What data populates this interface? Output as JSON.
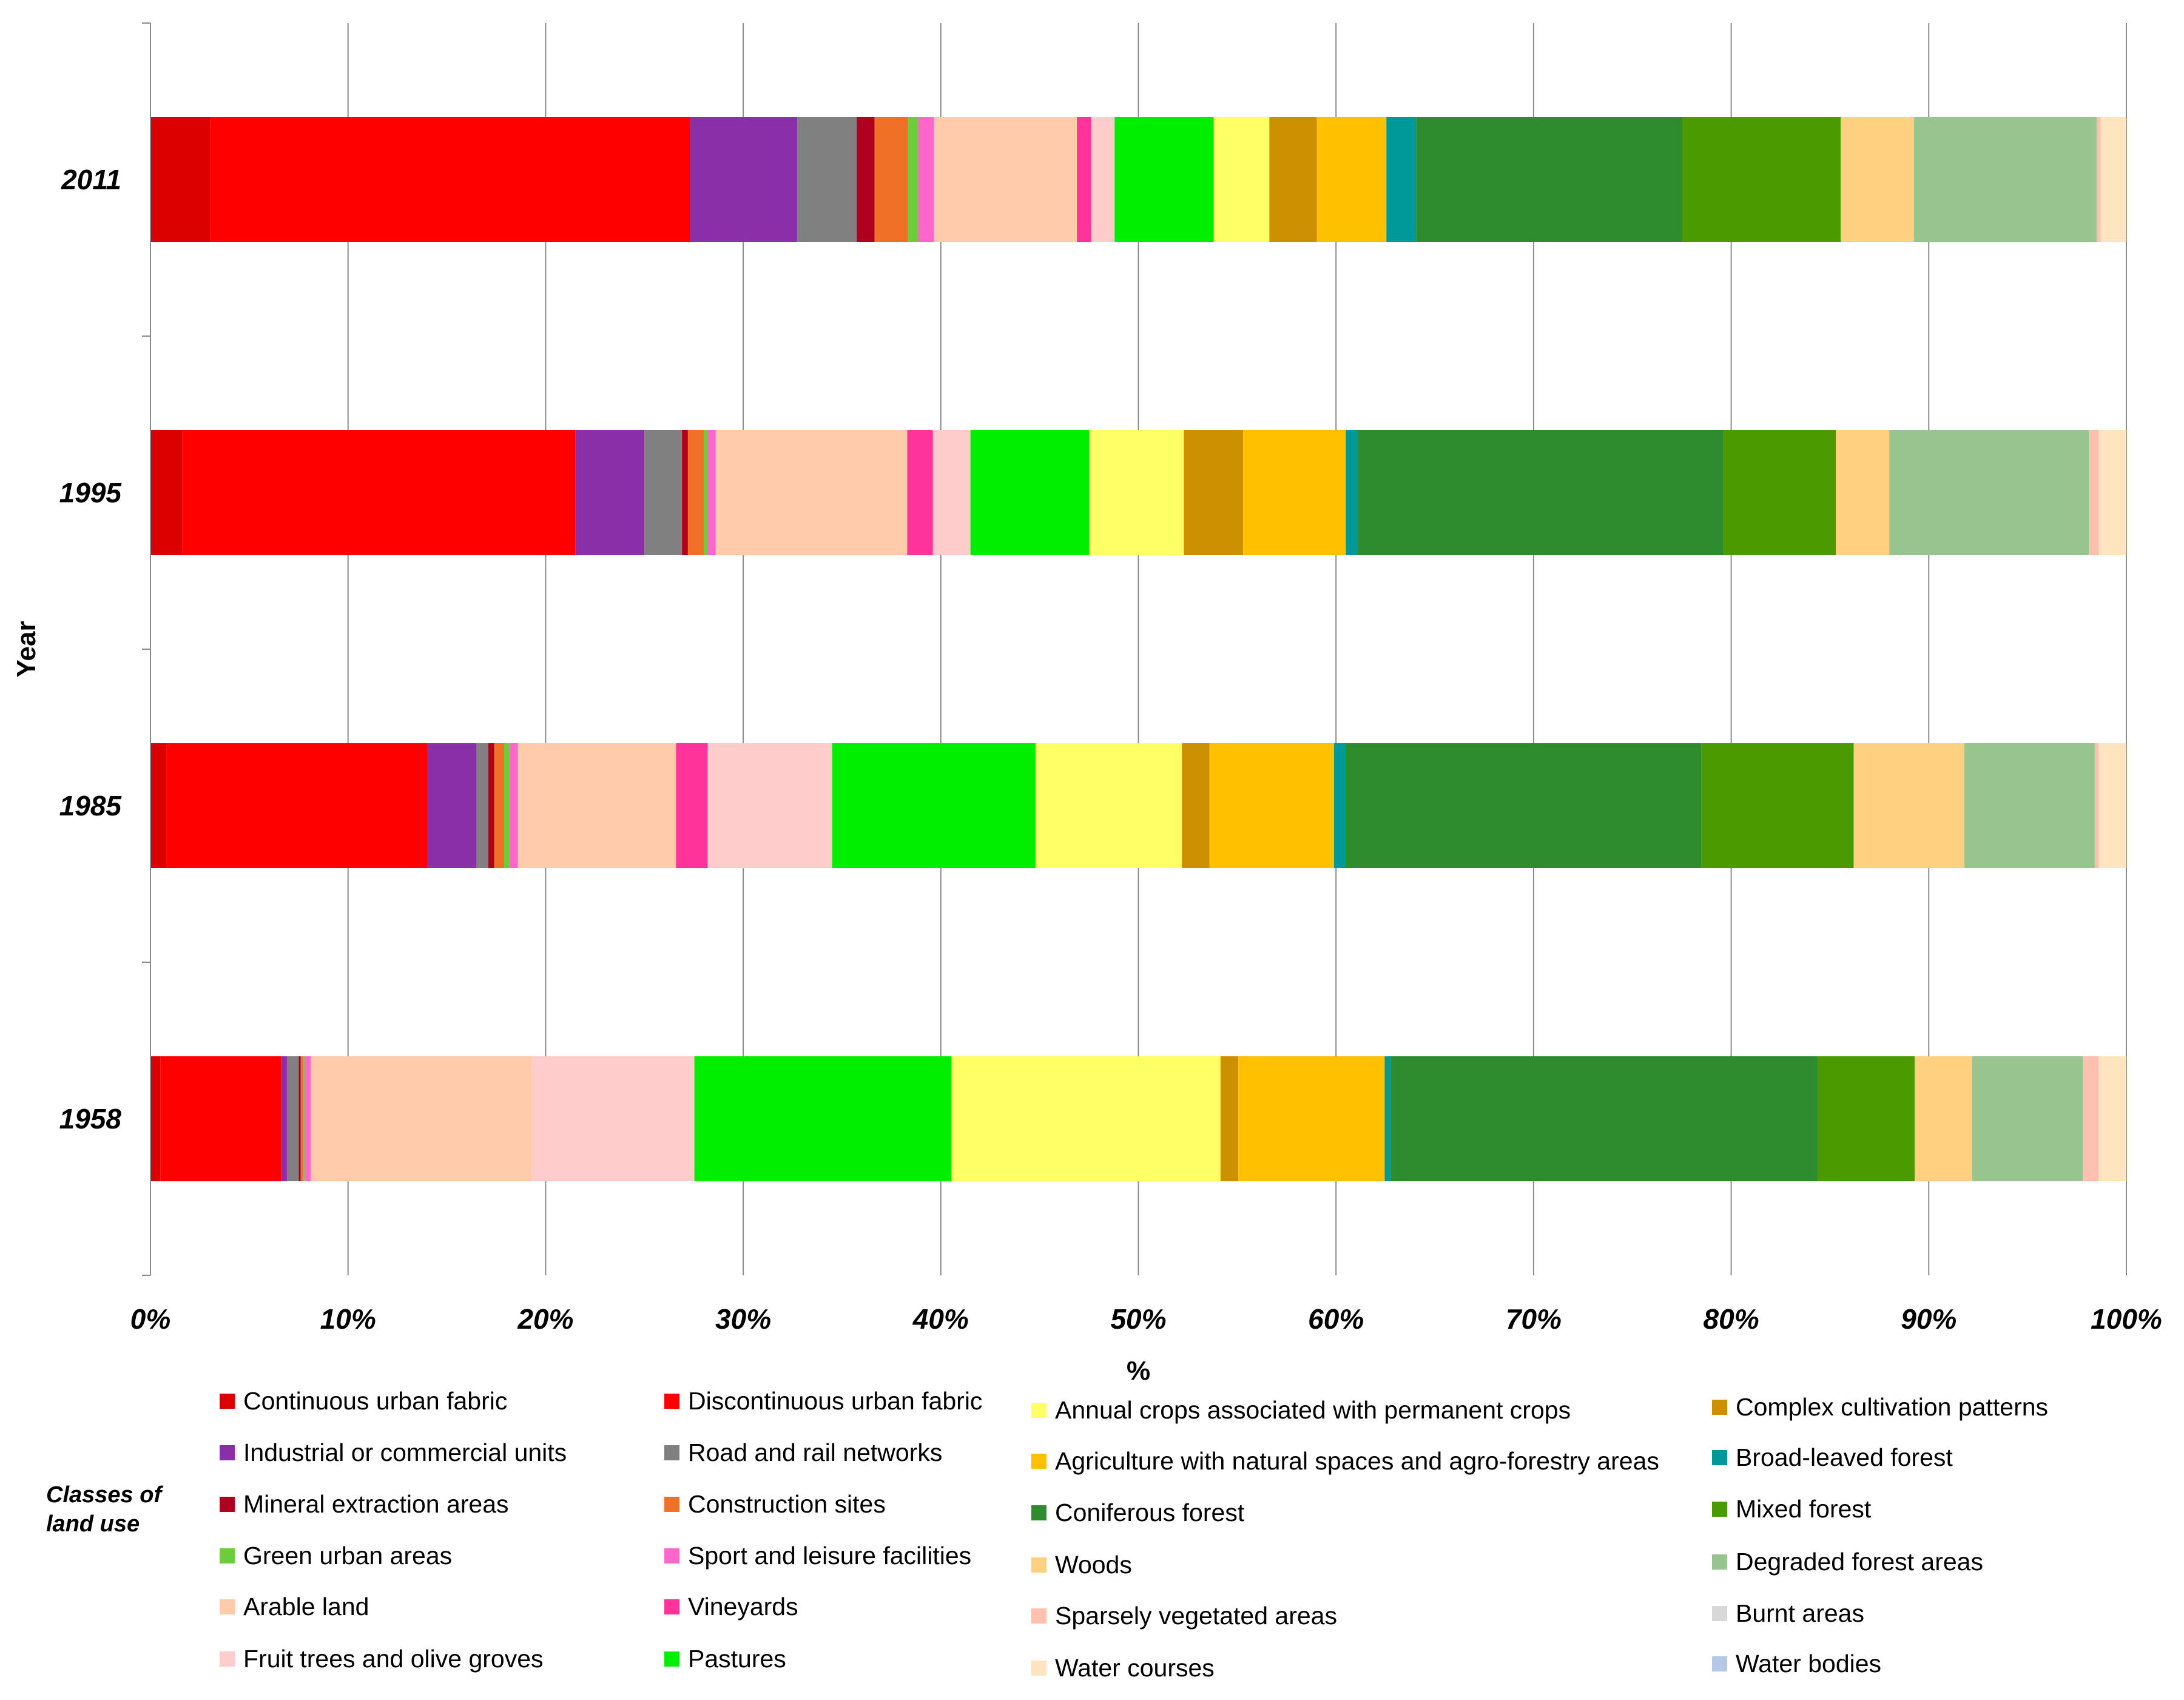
{
  "chart_data": {
    "type": "bar",
    "orientation": "horizontal",
    "stacked": "percent",
    "title": "",
    "xlabel": "%",
    "ylabel": "Year",
    "xlim": [
      0,
      100
    ],
    "x_ticks": [
      "0%",
      "10%",
      "20%",
      "30%",
      "40%",
      "50%",
      "60%",
      "70%",
      "80%",
      "90%",
      "100%"
    ],
    "grid": true,
    "categories": [
      "2011",
      "1995",
      "1985",
      "1958"
    ],
    "legend_title": "Classes of land use",
    "legend_position": "bottom",
    "series": [
      {
        "name": "Continuous urban fabric",
        "color": "#dd0000",
        "values": [
          3.0,
          1.6,
          0.8,
          0.5
        ]
      },
      {
        "name": "Discontinuous urban fabric",
        "color": "#ff0000",
        "values": [
          24.2,
          19.9,
          13.2,
          6.1
        ]
      },
      {
        "name": "Industrial or commercial units",
        "color": "#8b2fa8",
        "values": [
          5.4,
          3.5,
          2.5,
          0.3
        ]
      },
      {
        "name": "Road and rail networks",
        "color": "#808080",
        "values": [
          3.0,
          1.9,
          0.6,
          0.6
        ]
      },
      {
        "name": "Mineral extraction areas",
        "color": "#b00020",
        "values": [
          0.9,
          0.3,
          0.3,
          0.1
        ]
      },
      {
        "name": "Construction sites",
        "color": "#f07028",
        "values": [
          1.7,
          0.8,
          0.5,
          0.1
        ]
      },
      {
        "name": "Green urban areas",
        "color": "#6ccc3c",
        "values": [
          0.5,
          0.2,
          0.3,
          0.1
        ]
      },
      {
        "name": "Sport and leisure facilities",
        "color": "#ff66cc",
        "values": [
          0.8,
          0.4,
          0.4,
          0.3
        ]
      },
      {
        "name": "Arable land",
        "color": "#ffcbaa",
        "values": [
          7.2,
          9.7,
          8.0,
          11.2
        ]
      },
      {
        "name": "Vineyards",
        "color": "#ff3399",
        "values": [
          0.7,
          1.3,
          1.6,
          0.0
        ]
      },
      {
        "name": "Fruit trees and olive groves",
        "color": "#ffcccc",
        "values": [
          1.2,
          1.9,
          6.3,
          8.2
        ]
      },
      {
        "name": "Pastures",
        "color": "#00ee00",
        "values": [
          5.0,
          6.0,
          10.3,
          13.0
        ]
      },
      {
        "name": "Annual crops associated with permanent crops",
        "color": "#ffff66",
        "values": [
          2.8,
          4.8,
          7.4,
          13.6
        ]
      },
      {
        "name": "Complex cultivation patterns",
        "color": "#cc9000",
        "values": [
          2.4,
          3.0,
          1.4,
          0.9
        ]
      },
      {
        "name": "Agriculture with natural spaces and agro-forestry areas",
        "color": "#ffc000",
        "values": [
          3.5,
          5.2,
          6.3,
          7.4
        ]
      },
      {
        "name": "Broad-leaved forest",
        "color": "#009999",
        "values": [
          1.5,
          0.6,
          0.6,
          0.3
        ]
      },
      {
        "name": "Coniferous forest",
        "color": "#2e8b2e",
        "values": [
          13.4,
          18.5,
          18.0,
          21.6
        ]
      },
      {
        "name": "Mixed forest",
        "color": "#4a9a00",
        "values": [
          8.0,
          5.7,
          7.7,
          4.9
        ]
      },
      {
        "name": "Woods",
        "color": "#ffd080",
        "values": [
          3.7,
          2.7,
          5.6,
          2.9
        ]
      },
      {
        "name": "Degraded forest areas",
        "color": "#98c490",
        "values": [
          9.2,
          10.1,
          6.6,
          5.6
        ]
      },
      {
        "name": "Sparsely vegetated areas",
        "color": "#ffc0b0",
        "values": [
          0.2,
          0.5,
          0.2,
          0.8
        ]
      },
      {
        "name": "Burnt areas",
        "color": "#d8d8d8",
        "values": [
          0.0,
          0.0,
          0.0,
          0.0
        ]
      },
      {
        "name": "Water bodies",
        "color": "#b4c8e8",
        "values": [
          0.0,
          0.0,
          0.0,
          0.0
        ]
      },
      {
        "name": "Water courses",
        "color": "#ffe4c0",
        "values": [
          1.3,
          1.4,
          1.4,
          1.4
        ]
      }
    ]
  }
}
